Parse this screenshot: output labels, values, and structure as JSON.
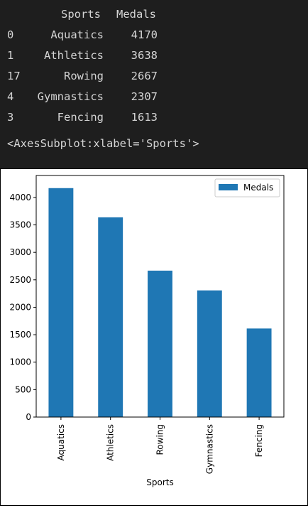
{
  "dataframe": {
    "columns": [
      "Sports",
      "Medals"
    ],
    "rows": [
      {
        "index": "0",
        "sport": "Aquatics",
        "medals": "4170"
      },
      {
        "index": "1",
        "sport": "Athletics",
        "medals": "3638"
      },
      {
        "index": "17",
        "sport": "Rowing",
        "medals": "2667"
      },
      {
        "index": "4",
        "sport": "Gymnastics",
        "medals": "2307"
      },
      {
        "index": "3",
        "sport": "Fencing",
        "medals": "1613"
      }
    ],
    "return_repr": "<AxesSubplot:xlabel='Sports'>"
  },
  "chart_data": {
    "type": "bar",
    "categories": [
      "Aquatics",
      "Athletics",
      "Rowing",
      "Gymnastics",
      "Fencing"
    ],
    "series": [
      {
        "name": "Medals",
        "values": [
          4170,
          3638,
          2667,
          2307,
          1613
        ]
      }
    ],
    "xlabel": "Sports",
    "ylabel": "",
    "ylim": [
      0,
      4400
    ],
    "yticks": [
      0,
      500,
      1000,
      1500,
      2000,
      2500,
      3000,
      3500,
      4000
    ],
    "legend": "top-right",
    "grid": false,
    "bar_color": "#1f77b4"
  }
}
